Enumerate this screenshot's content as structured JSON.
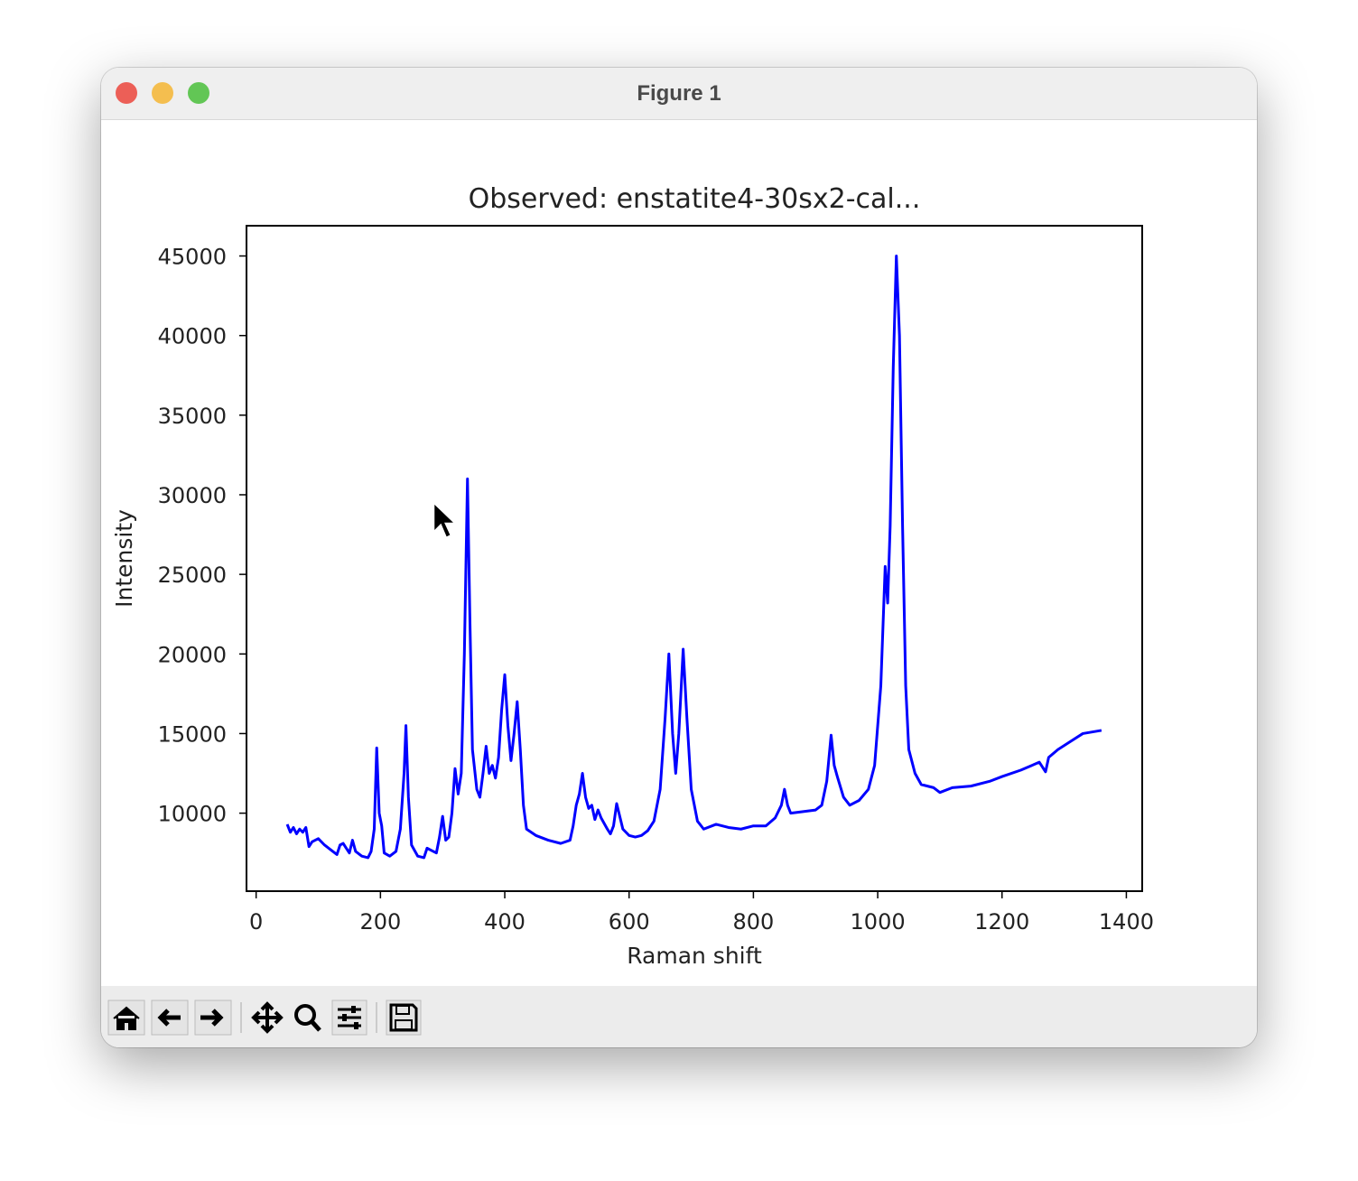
{
  "window": {
    "title": "Figure 1"
  },
  "chart_data": {
    "type": "line",
    "title": "Observed: enstatite4-30sx2-cal...",
    "x_label": "Raman shift",
    "y_label": "Intensity",
    "color": "#0000ff",
    "x": [
      50,
      55,
      60,
      65,
      70,
      75,
      80,
      85,
      90,
      100,
      110,
      120,
      130,
      135,
      140,
      145,
      150,
      155,
      160,
      170,
      180,
      185,
      190,
      194,
      198,
      202,
      206,
      215,
      225,
      232,
      238,
      241,
      245,
      250,
      260,
      270,
      275,
      280,
      290,
      295,
      300,
      305,
      310,
      315,
      320,
      325,
      330,
      335,
      340,
      344,
      348,
      355,
      360,
      365,
      370,
      375,
      380,
      385,
      390,
      395,
      400,
      405,
      410,
      415,
      420,
      425,
      430,
      435,
      450,
      470,
      490,
      505,
      510,
      515,
      520,
      525,
      530,
      535,
      540,
      545,
      550,
      555,
      565,
      570,
      575,
      580,
      585,
      590,
      600,
      610,
      620,
      630,
      640,
      650,
      658,
      664,
      670,
      675,
      680,
      687,
      693,
      700,
      710,
      720,
      740,
      760,
      780,
      800,
      820,
      835,
      845,
      850,
      855,
      860,
      880,
      900,
      910,
      918,
      925,
      930,
      935,
      945,
      955,
      970,
      985,
      995,
      1005,
      1012,
      1016,
      1020,
      1025,
      1030,
      1035,
      1040,
      1045,
      1050,
      1060,
      1070,
      1090,
      1100,
      1120,
      1150,
      1180,
      1200,
      1230,
      1260,
      1270,
      1275,
      1290,
      1310,
      1330,
      1345,
      1360
    ],
    "values": [
      9300,
      8800,
      9100,
      8700,
      9000,
      8800,
      9100,
      7900,
      8200,
      8400,
      8000,
      7700,
      7400,
      8000,
      8100,
      7800,
      7500,
      8300,
      7600,
      7300,
      7200,
      7600,
      9000,
      14100,
      10000,
      9200,
      7500,
      7300,
      7600,
      9000,
      12500,
      15500,
      11000,
      8000,
      7300,
      7200,
      7800,
      7700,
      7500,
      8500,
      9800,
      8300,
      8500,
      10000,
      12800,
      11200,
      12500,
      20000,
      31000,
      22000,
      14000,
      11500,
      11000,
      12500,
      14200,
      12500,
      13000,
      12200,
      13500,
      16500,
      18700,
      15500,
      13300,
      15000,
      17000,
      14000,
      10500,
      9000,
      8600,
      8300,
      8100,
      8300,
      9200,
      10500,
      11200,
      12500,
      11000,
      10300,
      10500,
      9600,
      10200,
      9700,
      9000,
      8700,
      9200,
      10600,
      9800,
      9000,
      8600,
      8500,
      8600,
      8900,
      9500,
      11500,
      16000,
      20000,
      15000,
      12500,
      15000,
      20300,
      16000,
      11500,
      9500,
      9000,
      9300,
      9100,
      9000,
      9200,
      9200,
      9700,
      10500,
      11500,
      10500,
      10000,
      10100,
      10200,
      10500,
      12000,
      14900,
      13000,
      12300,
      11000,
      10500,
      10800,
      11500,
      13000,
      18000,
      25500,
      23200,
      28000,
      38000,
      45000,
      40000,
      28000,
      18000,
      14000,
      12500,
      11800,
      11600,
      11300,
      11600,
      11700,
      12000,
      12300,
      12700,
      13200,
      12600,
      13500,
      14000,
      14500,
      15000,
      15100,
      15200
    ],
    "xlim": [
      -15.5,
      1425.5
    ],
    "xticks": [
      0,
      200,
      400,
      600,
      800,
      1000,
      1200,
      1400
    ],
    "ylim": [
      5100,
      46900
    ],
    "yticks": [
      10000,
      15000,
      20000,
      25000,
      30000,
      35000,
      40000,
      45000
    ]
  }
}
